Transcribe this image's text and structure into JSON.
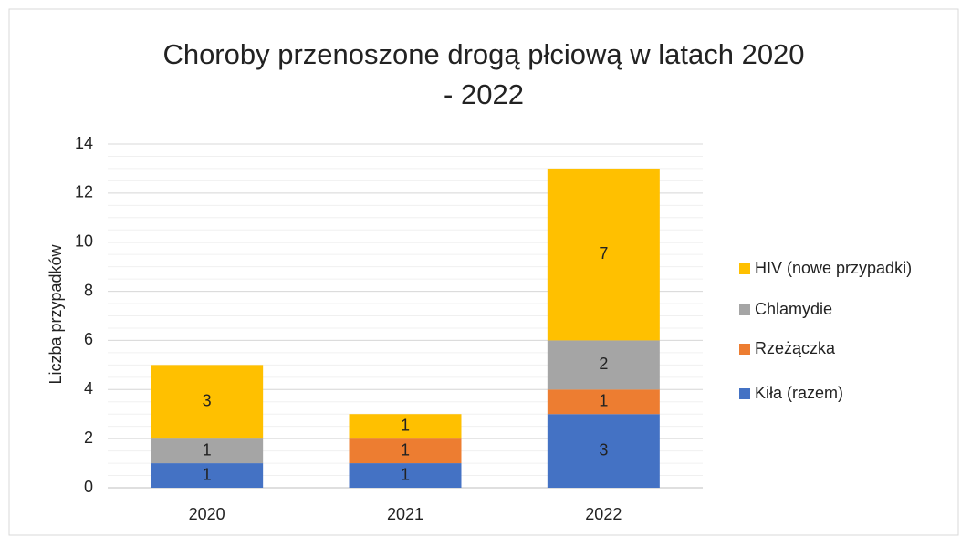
{
  "chart_data": {
    "type": "stacked_bar",
    "title": "Choroby przenoszone drogą płciową w latach 2020 - 2022",
    "y_label": "Liczba przypadków",
    "categories": [
      "2020",
      "2021",
      "2022"
    ],
    "series": [
      {
        "name": "Kiła (razem)",
        "color": "#4472c4",
        "values": [
          1,
          1,
          3
        ]
      },
      {
        "name": "Rzeżączka",
        "color": "#ed7d31",
        "values": [
          0,
          1,
          1
        ]
      },
      {
        "name": "Chlamydie",
        "color": "#a5a5a5",
        "values": [
          1,
          0,
          2
        ]
      },
      {
        "name": "HIV (nowe przypadki)",
        "color": "#ffc000",
        "values": [
          3,
          1,
          7
        ]
      }
    ],
    "ylim": [
      0,
      14
    ],
    "yticks": [
      0,
      2,
      4,
      6,
      8,
      10,
      12,
      14
    ],
    "grid": true,
    "minor_grid_step": 0.5,
    "legend": "right"
  }
}
